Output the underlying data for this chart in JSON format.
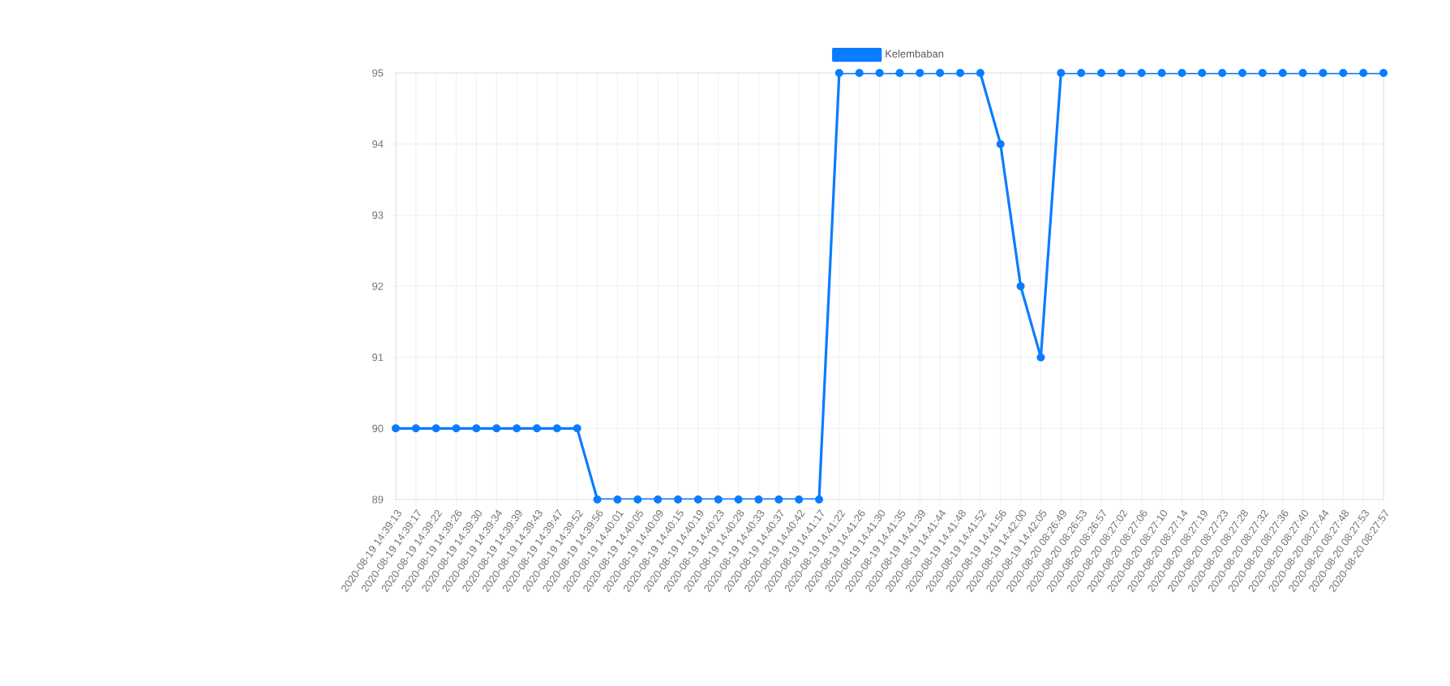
{
  "chart_data": {
    "type": "line",
    "categories": [
      "2020-08-19 14:39:13",
      "2020-08-19 14:39:17",
      "2020-08-19 14:39:22",
      "2020-08-19 14:39:26",
      "2020-08-19 14:39:30",
      "2020-08-19 14:39:34",
      "2020-08-19 14:39:39",
      "2020-08-19 14:39:43",
      "2020-08-19 14:39:47",
      "2020-08-19 14:39:52",
      "2020-08-19 14:39:56",
      "2020-08-19 14:40:01",
      "2020-08-19 14:40:05",
      "2020-08-19 14:40:09",
      "2020-08-19 14:40:15",
      "2020-08-19 14:40:19",
      "2020-08-19 14:40:23",
      "2020-08-19 14:40:28",
      "2020-08-19 14:40:33",
      "2020-08-19 14:40:37",
      "2020-08-19 14:40:42",
      "2020-08-19 14:41:17",
      "2020-08-19 14:41:22",
      "2020-08-19 14:41:26",
      "2020-08-19 14:41:30",
      "2020-08-19 14:41:35",
      "2020-08-19 14:41:39",
      "2020-08-19 14:41:44",
      "2020-08-19 14:41:48",
      "2020-08-19 14:41:52",
      "2020-08-19 14:41:56",
      "2020-08-19 14:42:00",
      "2020-08-19 14:42:05",
      "2020-08-20 08:26:49",
      "2020-08-20 08:26:53",
      "2020-08-20 08:26:57",
      "2020-08-20 08:27:02",
      "2020-08-20 08:27:06",
      "2020-08-20 08:27:10",
      "2020-08-20 08:27:14",
      "2020-08-20 08:27:19",
      "2020-08-20 08:27:23",
      "2020-08-20 08:27:28",
      "2020-08-20 08:27:32",
      "2020-08-20 08:27:36",
      "2020-08-20 08:27:40",
      "2020-08-20 08:27:44",
      "2020-08-20 08:27:48",
      "2020-08-20 08:27:53",
      "2020-08-20 08:27:57"
    ],
    "series": [
      {
        "name": "Kelembaban",
        "color": "#0a7cff",
        "values": [
          90,
          90,
          90,
          90,
          90,
          90,
          90,
          90,
          90,
          90,
          89,
          89,
          89,
          89,
          89,
          89,
          89,
          89,
          89,
          89,
          89,
          89,
          95,
          95,
          95,
          95,
          95,
          95,
          95,
          95,
          94,
          92,
          91,
          95,
          95,
          95,
          95,
          95,
          95,
          95,
          95,
          95,
          95,
          95,
          95,
          95,
          95,
          95,
          95,
          95
        ]
      }
    ],
    "ylim": [
      89,
      95
    ],
    "yticks": [
      89,
      90,
      91,
      92,
      93,
      94,
      95
    ],
    "grid": true,
    "legend": "top",
    "marker": "circle",
    "line_style": "solid"
  }
}
